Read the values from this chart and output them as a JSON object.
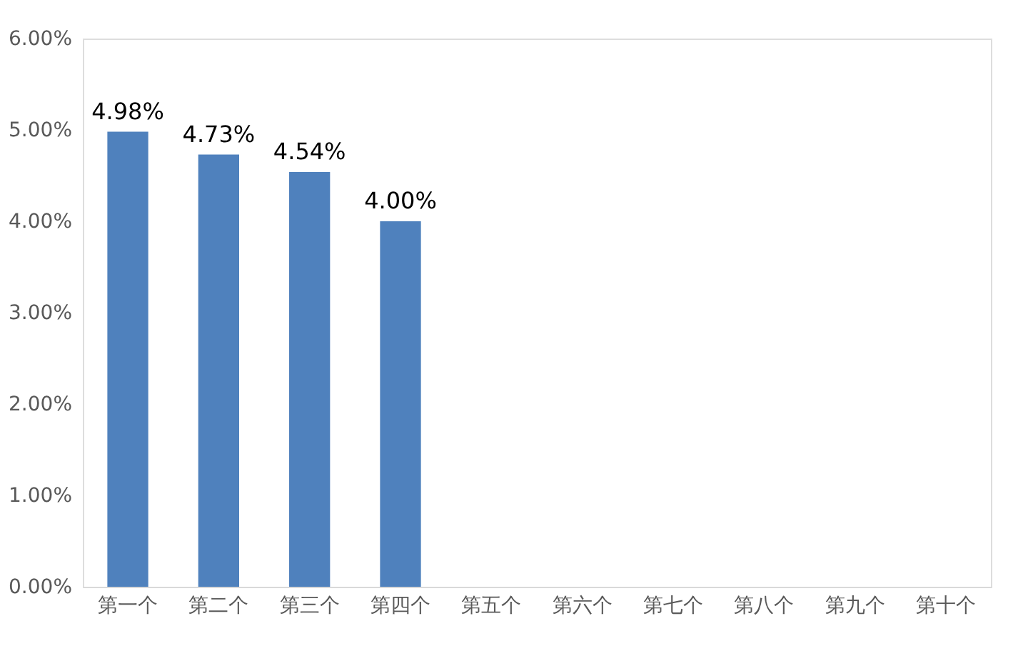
{
  "chart_data": {
    "type": "bar",
    "categories": [
      "第一个",
      "第二个",
      "第三个",
      "第四个",
      "第五个",
      "第六个",
      "第七个",
      "第八个",
      "第九个",
      "第十个"
    ],
    "values": [
      4.98,
      4.73,
      4.54,
      4.0,
      null,
      null,
      null,
      null,
      null,
      null
    ],
    "value_labels": [
      "4.98%",
      "4.73%",
      "4.54%",
      "4.00%",
      null,
      null,
      null,
      null,
      null,
      null
    ],
    "color": "#4f81bd",
    "ylim": [
      0,
      6
    ],
    "yticks": [
      {
        "value": 0,
        "label": "0.00%"
      },
      {
        "value": 1,
        "label": "1.00%"
      },
      {
        "value": 2,
        "label": "2.00%"
      },
      {
        "value": 3,
        "label": "3.00%"
      },
      {
        "value": 4,
        "label": "4.00%"
      },
      {
        "value": 5,
        "label": "5.00%"
      },
      {
        "value": 6,
        "label": "6.00%"
      }
    ],
    "grid": false
  }
}
